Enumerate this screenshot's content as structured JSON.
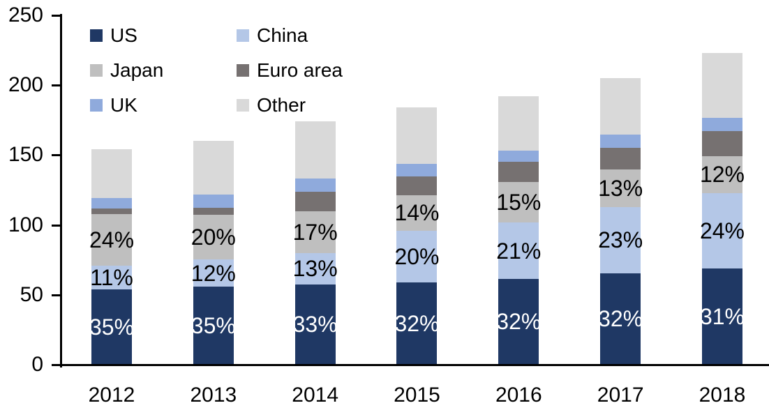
{
  "chart_data": {
    "type": "bar",
    "stacked": true,
    "title": "",
    "xlabel": "",
    "ylabel": "",
    "categories": [
      "2012",
      "2013",
      "2014",
      "2015",
      "2016",
      "2017",
      "2018"
    ],
    "totals": [
      154,
      160,
      174,
      184,
      192,
      205,
      223
    ],
    "series": [
      {
        "name": "US",
        "color": "#1F3864",
        "values": [
          53.9,
          56.0,
          57.4,
          58.9,
          61.4,
          65.6,
          69.1
        ],
        "labels": [
          "35%",
          "35%",
          "33%",
          "32%",
          "32%",
          "32%",
          "31%"
        ],
        "label_color": "#FFFFFF"
      },
      {
        "name": "China",
        "color": "#B4C7E7",
        "values": [
          16.9,
          19.2,
          22.6,
          36.8,
          40.3,
          47.2,
          53.5
        ],
        "labels": [
          "11%",
          "12%",
          "13%",
          "20%",
          "21%",
          "23%",
          "24%"
        ],
        "label_color": "#000000"
      },
      {
        "name": "Japan",
        "color": "#BFBFBF",
        "values": [
          37.0,
          32.0,
          29.6,
          25.8,
          28.8,
          26.7,
          26.8
        ],
        "labels": [
          "24%",
          "20%",
          "17%",
          "14%",
          "15%",
          "13%",
          "12%"
        ],
        "label_color": "#000000"
      },
      {
        "name": "Euro area",
        "color": "#767171",
        "values": [
          4.0,
          5.0,
          14.0,
          13.0,
          14.5,
          15.5,
          18.0
        ],
        "labels": null,
        "label_color": null
      },
      {
        "name": "UK",
        "color": "#8FAADC",
        "values": [
          7.5,
          9.5,
          9.5,
          9.0,
          8.0,
          9.5,
          9.0
        ],
        "labels": null,
        "label_color": null
      },
      {
        "name": "Other",
        "color": "#D9D9D9",
        "values": [
          34.7,
          38.3,
          40.9,
          40.5,
          39.0,
          40.5,
          46.6
        ],
        "labels": null,
        "label_color": null
      }
    ],
    "y_axis": {
      "min": 0,
      "max": 250,
      "tick_interval": 50,
      "tick_labels": [
        "0",
        "50",
        "100",
        "150",
        "200",
        "250"
      ]
    },
    "legend": {
      "position": "top-left-inside",
      "columns": 2,
      "items": [
        "US",
        "China",
        "Japan",
        "Euro area",
        "UK",
        "Other"
      ]
    },
    "axis_color": "#000000"
  }
}
